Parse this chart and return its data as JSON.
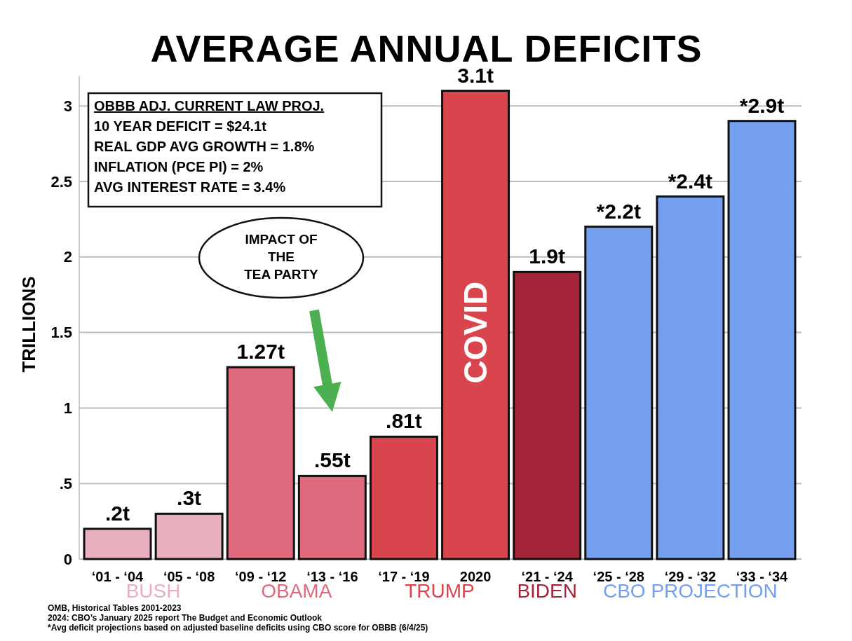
{
  "chart_data": {
    "type": "bar",
    "title": "AVERAGE ANNUAL DEFICITS",
    "ylabel": "TRILLIONS",
    "categories": [
      "‘01 - ‘04",
      "‘05 - ‘08",
      "‘09 - ‘12",
      "‘13 - ‘16",
      "‘17 - ‘19",
      "2020",
      "‘21 - ‘24",
      "‘25 - ‘28",
      "‘29 - ‘32",
      "‘33 - ‘34"
    ],
    "values": [
      0.2,
      0.3,
      1.27,
      0.55,
      0.81,
      3.1,
      1.9,
      2.2,
      2.4,
      2.9
    ],
    "colors": [
      "#e8b0bf",
      "#e8b0bf",
      "#df6a7e",
      "#df6a7e",
      "#d9454d",
      "#d9454d",
      "#a32436",
      "#75a0f0",
      "#75a0f0",
      "#75a0f0"
    ],
    "value_labels": [
      ".2t",
      ".3t",
      "1.27t",
      ".55t",
      ".81t",
      "3.1t",
      "1.9t",
      "*2.2t",
      "*2.4t",
      "*2.9t"
    ],
    "ylim": [
      0,
      3.2
    ],
    "yticks": [
      0,
      {
        "value": 0.5,
        "label": ".5"
      },
      1,
      1.5,
      2,
      2.5,
      3
    ],
    "grid": "y",
    "annotations": [
      "OBBB ADJ. CURRENT LAW PROJ.",
      "10 YEAR DEFICIT = $24.1t",
      "REAL GDP AVG GROWTH = 1.8%",
      "INFLATION (PCE PI) = 2%",
      "AVG INTEREST RATE = 3.4%",
      "IMPACT OF THE TEA PARTY",
      "COVID",
      "BUSH",
      "OBAMA",
      "TRUMP",
      "BIDEN",
      "CBO PROJECTION",
      "OMB, Historical Tables 2001-2023",
      "2024: CBO’s January 2025 report The Budget and Economic Outlook",
      "*Avg deficit projections based on adjusted baseline deficits using CBO score for OBBB (6/4/25)"
    ]
  }
}
